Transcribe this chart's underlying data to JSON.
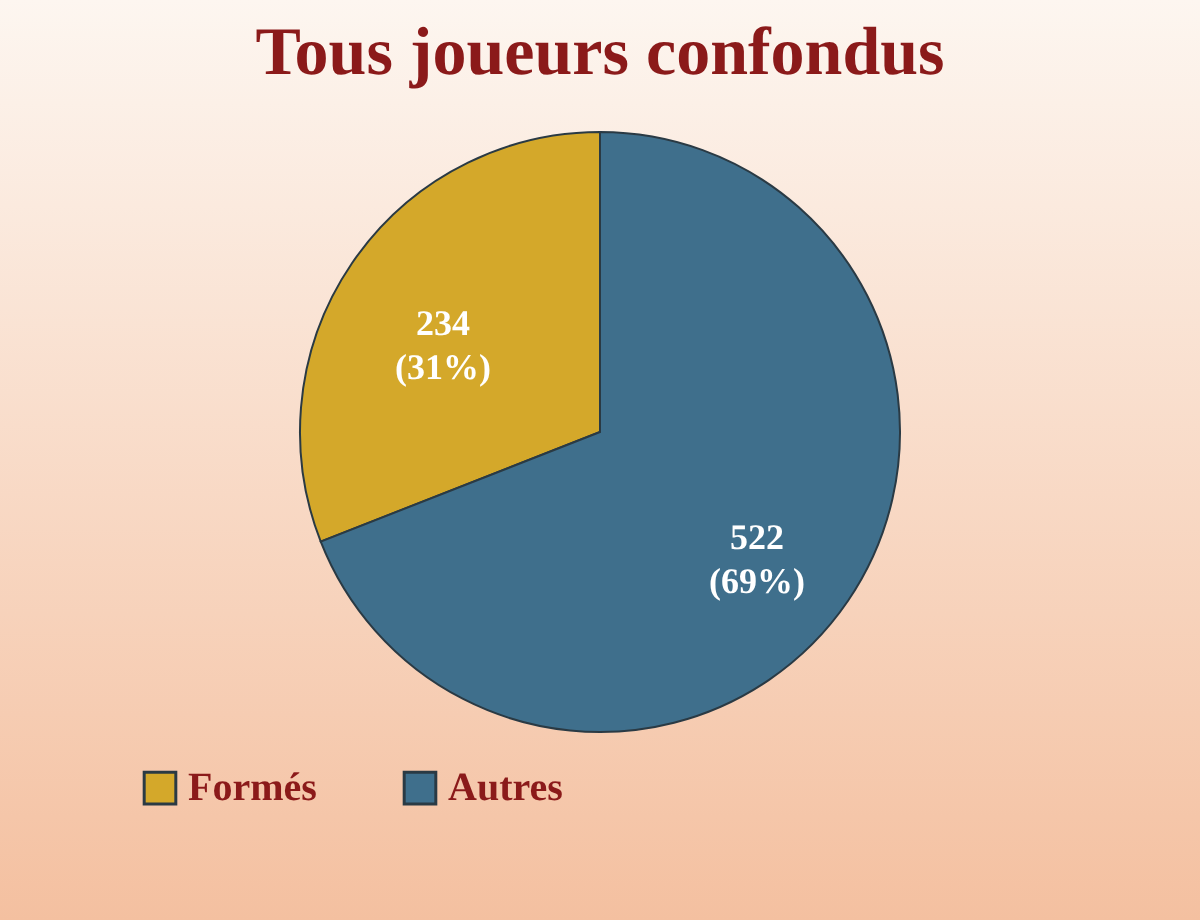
{
  "chart_data": {
    "type": "pie",
    "title": "Tous joueurs confondus",
    "categories": [
      "Formés",
      "Autres"
    ],
    "values": [
      234,
      522
    ],
    "colors": [
      "#d4a82a",
      "#3f6f8c"
    ],
    "value_labels": [
      "234 (31%)",
      "522 (69%)"
    ],
    "legend": "bottom"
  }
}
